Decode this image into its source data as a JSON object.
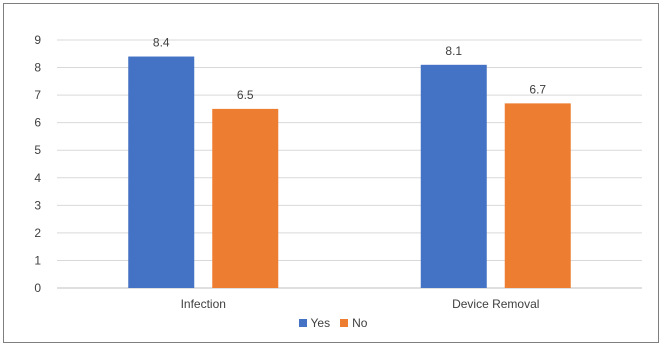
{
  "chart_data": {
    "type": "bar",
    "categories": [
      "Infection",
      "Device Removal"
    ],
    "series": [
      {
        "name": "Yes",
        "values": [
          8.4,
          8.1
        ],
        "color": "#4472c4"
      },
      {
        "name": "No",
        "values": [
          6.5,
          6.7
        ],
        "color": "#ed7d31"
      }
    ],
    "ylim": [
      0,
      9
    ],
    "yticks": [
      0,
      1,
      2,
      3,
      4,
      5,
      6,
      7,
      8,
      9
    ],
    "grid": true,
    "legend_position": "bottom",
    "data_labels": true
  }
}
